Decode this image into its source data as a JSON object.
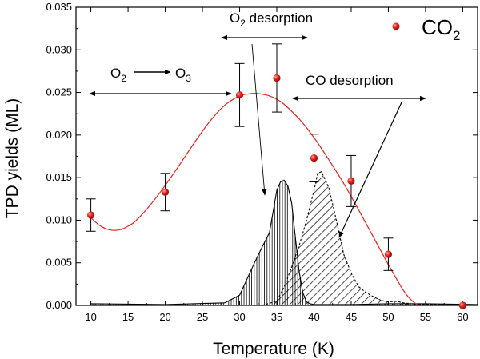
{
  "chart_data": {
    "type": "scatter",
    "title": "",
    "xlabel": "Temperature (K)",
    "ylabel": "TPD yields (ML)",
    "xlim": [
      8,
      62
    ],
    "ylim": [
      0,
      0.035
    ],
    "xticks": [
      10,
      15,
      20,
      25,
      30,
      35,
      40,
      45,
      50,
      55,
      60
    ],
    "yticks": [
      0.0,
      0.005,
      0.01,
      0.015,
      0.02,
      0.025,
      0.03,
      0.035
    ],
    "xtick_labels": [
      "10",
      "15",
      "20",
      "25",
      "30",
      "35",
      "40",
      "45",
      "50",
      "55",
      "60"
    ],
    "ytick_labels": [
      "0.000",
      "0.005",
      "0.010",
      "0.015",
      "0.020",
      "0.025",
      "0.030",
      "0.035"
    ],
    "legend": {
      "label": "CO",
      "subscript": "2",
      "position": "top-right"
    },
    "series": [
      {
        "name": "CO2",
        "kind": "points-with-errorbars",
        "color": "#e8231c",
        "x": [
          10,
          20,
          30,
          35,
          40,
          45,
          50,
          60
        ],
        "y": [
          0.0106,
          0.0133,
          0.0247,
          0.0267,
          0.0173,
          0.0146,
          0.006,
          0.0
        ],
        "err": [
          0.0019,
          0.0022,
          0.0037,
          0.004,
          0.0028,
          0.003,
          0.0019,
          0
        ]
      },
      {
        "name": "fit",
        "kind": "line",
        "color": "#e8231c",
        "x": [
          10,
          11,
          12,
          13,
          14,
          15,
          16,
          18,
          20,
          22,
          24,
          26,
          28,
          30,
          31,
          32,
          33,
          34,
          35,
          36,
          38,
          40,
          42,
          44,
          46,
          48,
          50,
          52,
          53,
          54
        ],
        "y": [
          0.0103,
          0.0095,
          0.009,
          0.0088,
          0.0089,
          0.0093,
          0.0099,
          0.0118,
          0.0141,
          0.0166,
          0.0192,
          0.0216,
          0.0235,
          0.0246,
          0.0248,
          0.0249,
          0.0248,
          0.0246,
          0.0242,
          0.0236,
          0.0219,
          0.0197,
          0.0171,
          0.0143,
          0.0112,
          0.008,
          0.0048,
          0.0018,
          0.0007,
          0.0
        ]
      },
      {
        "name": "O2 desorption",
        "kind": "area",
        "hatch": "vertical",
        "x": [
          10,
          20,
          28,
          30,
          32,
          33,
          34,
          34.5,
          35,
          35.5,
          36,
          36.5,
          37,
          37.5,
          38,
          38.5,
          39,
          39.5,
          40,
          41,
          45,
          50,
          55,
          62
        ],
        "y": [
          0.0002,
          0.0001,
          0.0003,
          0.0012,
          0.005,
          0.0068,
          0.0085,
          0.011,
          0.0135,
          0.0145,
          0.0147,
          0.014,
          0.012,
          0.008,
          0.004,
          0.0015,
          0.0004,
          0.0002,
          0.0001,
          0.0001,
          0.0001,
          0.0002,
          0.0002,
          0.0001
        ]
      },
      {
        "name": "CO desorption",
        "kind": "area",
        "hatch": "diagonal",
        "x": [
          33,
          35,
          36,
          37,
          38,
          39,
          40,
          40.5,
          41,
          42,
          43,
          44,
          45,
          46,
          47,
          48,
          49,
          50,
          51,
          52,
          54,
          56,
          62
        ],
        "y": [
          0.0,
          0.0005,
          0.0022,
          0.0045,
          0.007,
          0.01,
          0.0135,
          0.0155,
          0.0157,
          0.0138,
          0.01,
          0.006,
          0.0038,
          0.0022,
          0.0015,
          0.001,
          0.0006,
          0.0004,
          0.0005,
          0.0003,
          0.0001,
          0.0001,
          0.0
        ]
      }
    ],
    "annotations": [
      {
        "text": "O",
        "sub": "2",
        "tail": " desorption",
        "x": 34.8,
        "y": 0.0333
      },
      {
        "text": "CO desorption",
        "x": 46.5,
        "y": 0.028
      },
      {
        "text": "O",
        "sub": "2",
        "arrow_target": "O",
        "sub2": "3",
        "x": 18,
        "y": 0.029
      }
    ]
  }
}
